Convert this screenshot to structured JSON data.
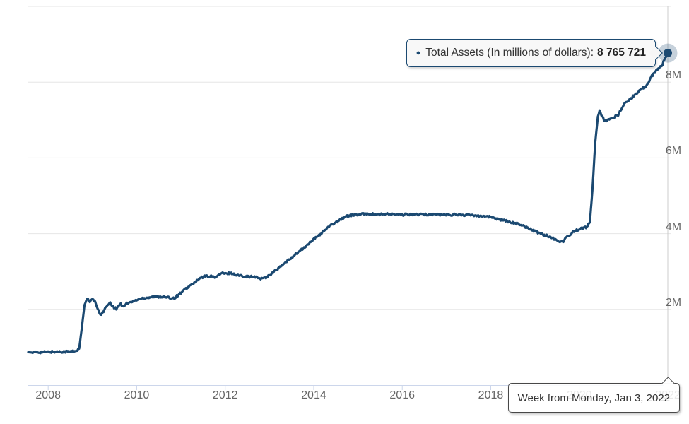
{
  "tooltip": {
    "bullet": "●",
    "label": "Total Assets (In millions of dollars):",
    "value": "8 765 721"
  },
  "x_tooltip": {
    "text": "Week from Monday, Jan 3, 2022"
  },
  "colors": {
    "series": "#1b4971",
    "grid": "#e6e6e6",
    "axis_line": "#ccd6eb",
    "tick": "#ccd6eb",
    "crosshair": "#cccccc",
    "axis_text": "#666666",
    "tooltip_border": "#1b4971",
    "halo_opacity": "0.25"
  },
  "chart_data": {
    "type": "line",
    "title": "",
    "xlabel": "",
    "ylabel": "",
    "grid": true,
    "legend_position": "none",
    "xlim": [
      2007.55,
      2022.04
    ],
    "ylim": [
      0,
      10000000
    ],
    "x_ticks": [
      2008,
      2010,
      2012,
      2014,
      2016,
      2018,
      2020,
      2022
    ],
    "x_tick_labels": [
      "2008",
      "2010",
      "2012",
      "2014",
      "2016",
      "2018",
      "2020",
      "2022"
    ],
    "y_ticks": [
      {
        "value": 2000000,
        "label": "2M"
      },
      {
        "value": 4000000,
        "label": "4M"
      },
      {
        "value": 6000000,
        "label": "6M"
      },
      {
        "value": 8000000,
        "label": "8M"
      },
      {
        "value": 10000000,
        "label": ""
      }
    ],
    "hover_point": {
      "x": 2022.0,
      "y": 8765721,
      "x_label": "Week from Monday, Jan 3, 2022",
      "y_label": "8 765 721"
    },
    "series": [
      {
        "name": "Total Assets (In millions of dollars)",
        "color": "#1b4971",
        "points": [
          [
            2007.55,
            870000
          ],
          [
            2007.65,
            858000
          ],
          [
            2007.75,
            868000
          ],
          [
            2007.9,
            872000
          ],
          [
            2008.05,
            878000
          ],
          [
            2008.2,
            880000
          ],
          [
            2008.35,
            885000
          ],
          [
            2008.5,
            888000
          ],
          [
            2008.62,
            900000
          ],
          [
            2008.7,
            960000
          ],
          [
            2008.76,
            1510000
          ],
          [
            2008.82,
            2110000
          ],
          [
            2008.88,
            2290000
          ],
          [
            2008.94,
            2190000
          ],
          [
            2009.0,
            2270000
          ],
          [
            2009.06,
            2210000
          ],
          [
            2009.12,
            1990000
          ],
          [
            2009.18,
            1860000
          ],
          [
            2009.25,
            1950000
          ],
          [
            2009.32,
            2080000
          ],
          [
            2009.4,
            2160000
          ],
          [
            2009.47,
            2070000
          ],
          [
            2009.54,
            2010000
          ],
          [
            2009.62,
            2150000
          ],
          [
            2009.7,
            2090000
          ],
          [
            2009.78,
            2160000
          ],
          [
            2009.88,
            2190000
          ],
          [
            2010.0,
            2250000
          ],
          [
            2010.15,
            2300000
          ],
          [
            2010.35,
            2330000
          ],
          [
            2010.55,
            2340000
          ],
          [
            2010.7,
            2310000
          ],
          [
            2010.85,
            2300000
          ],
          [
            2011.0,
            2440000
          ],
          [
            2011.15,
            2580000
          ],
          [
            2011.3,
            2700000
          ],
          [
            2011.45,
            2830000
          ],
          [
            2011.55,
            2880000
          ],
          [
            2011.68,
            2870000
          ],
          [
            2011.8,
            2855000
          ],
          [
            2011.92,
            2960000
          ],
          [
            2012.02,
            2935000
          ],
          [
            2012.12,
            2965000
          ],
          [
            2012.25,
            2905000
          ],
          [
            2012.4,
            2880000
          ],
          [
            2012.55,
            2865000
          ],
          [
            2012.7,
            2845000
          ],
          [
            2012.82,
            2815000
          ],
          [
            2012.92,
            2840000
          ],
          [
            2013.05,
            2950000
          ],
          [
            2013.2,
            3080000
          ],
          [
            2013.35,
            3220000
          ],
          [
            2013.5,
            3370000
          ],
          [
            2013.65,
            3510000
          ],
          [
            2013.8,
            3640000
          ],
          [
            2013.95,
            3800000
          ],
          [
            2014.1,
            3940000
          ],
          [
            2014.25,
            4090000
          ],
          [
            2014.4,
            4230000
          ],
          [
            2014.55,
            4340000
          ],
          [
            2014.7,
            4440000
          ],
          [
            2014.85,
            4490000
          ],
          [
            2015.0,
            4500000
          ],
          [
            2015.2,
            4525000
          ],
          [
            2015.45,
            4505000
          ],
          [
            2015.7,
            4515000
          ],
          [
            2015.95,
            4495000
          ],
          [
            2016.2,
            4510000
          ],
          [
            2016.45,
            4500000
          ],
          [
            2016.7,
            4510000
          ],
          [
            2016.95,
            4495000
          ],
          [
            2017.2,
            4505000
          ],
          [
            2017.45,
            4490000
          ],
          [
            2017.7,
            4480000
          ],
          [
            2017.9,
            4460000
          ],
          [
            2018.1,
            4410000
          ],
          [
            2018.3,
            4350000
          ],
          [
            2018.5,
            4290000
          ],
          [
            2018.7,
            4230000
          ],
          [
            2018.9,
            4120000
          ],
          [
            2019.1,
            4010000
          ],
          [
            2019.3,
            3930000
          ],
          [
            2019.5,
            3830000
          ],
          [
            2019.62,
            3770000
          ],
          [
            2019.72,
            3920000
          ],
          [
            2019.8,
            3990000
          ],
          [
            2019.88,
            4060000
          ],
          [
            2019.98,
            4110000
          ],
          [
            2020.08,
            4150000
          ],
          [
            2020.17,
            4170000
          ],
          [
            2020.24,
            4310000
          ],
          [
            2020.3,
            5200000
          ],
          [
            2020.36,
            6400000
          ],
          [
            2020.42,
            7090000
          ],
          [
            2020.46,
            7230000
          ],
          [
            2020.52,
            7080000
          ],
          [
            2020.58,
            6960000
          ],
          [
            2020.66,
            7010000
          ],
          [
            2020.76,
            7060000
          ],
          [
            2020.88,
            7140000
          ],
          [
            2021.0,
            7400000
          ],
          [
            2021.12,
            7520000
          ],
          [
            2021.25,
            7660000
          ],
          [
            2021.38,
            7810000
          ],
          [
            2021.5,
            7880000
          ],
          [
            2021.62,
            8130000
          ],
          [
            2021.75,
            8320000
          ],
          [
            2021.88,
            8470000
          ],
          [
            2022.0,
            8765721
          ]
        ]
      }
    ]
  }
}
